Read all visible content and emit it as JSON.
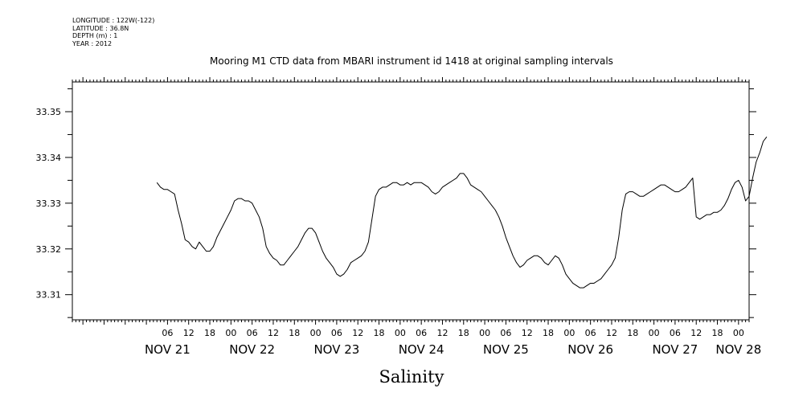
{
  "metadata": [
    "LONGITUDE : 122W(-122)",
    "LATITUDE : 36.8N",
    "DEPTH (m) : 1",
    "YEAR : 2012"
  ],
  "chart_data": {
    "type": "line",
    "title": "Mooring M1 CTD data from MBARI instrument id 1418 at original sampling intervals",
    "xlabel": "Salinity",
    "ylabel": "",
    "x_start": "2012-11-20 03:00",
    "x_end": "2012-11-28 03:00",
    "ylim": [
      33.3045,
      33.3565
    ],
    "y_ticks": [
      33.31,
      33.32,
      33.33,
      33.34,
      33.35
    ],
    "y_tick_labels": [
      "33.31",
      "33.32",
      "33.33",
      "33.34",
      "33.35"
    ],
    "hour_ticks": [
      {
        "t": "2012-11-21 06:00",
        "label": "06"
      },
      {
        "t": "2012-11-21 12:00",
        "label": "12"
      },
      {
        "t": "2012-11-21 18:00",
        "label": "18"
      },
      {
        "t": "2012-11-22 00:00",
        "label": "00"
      },
      {
        "t": "2012-11-22 06:00",
        "label": "06"
      },
      {
        "t": "2012-11-22 12:00",
        "label": "12"
      },
      {
        "t": "2012-11-22 18:00",
        "label": "18"
      },
      {
        "t": "2012-11-23 00:00",
        "label": "00"
      },
      {
        "t": "2012-11-23 06:00",
        "label": "06"
      },
      {
        "t": "2012-11-23 12:00",
        "label": "12"
      },
      {
        "t": "2012-11-23 18:00",
        "label": "18"
      },
      {
        "t": "2012-11-24 00:00",
        "label": "00"
      },
      {
        "t": "2012-11-24 06:00",
        "label": "06"
      },
      {
        "t": "2012-11-24 12:00",
        "label": "12"
      },
      {
        "t": "2012-11-24 18:00",
        "label": "18"
      },
      {
        "t": "2012-11-25 00:00",
        "label": "00"
      },
      {
        "t": "2012-11-25 06:00",
        "label": "06"
      },
      {
        "t": "2012-11-25 12:00",
        "label": "12"
      },
      {
        "t": "2012-11-25 18:00",
        "label": "18"
      },
      {
        "t": "2012-11-26 00:00",
        "label": "00"
      },
      {
        "t": "2012-11-26 06:00",
        "label": "06"
      },
      {
        "t": "2012-11-26 12:00",
        "label": "12"
      },
      {
        "t": "2012-11-26 18:00",
        "label": "18"
      },
      {
        "t": "2012-11-27 00:00",
        "label": "00"
      },
      {
        "t": "2012-11-27 06:00",
        "label": "06"
      },
      {
        "t": "2012-11-27 12:00",
        "label": "12"
      },
      {
        "t": "2012-11-27 18:00",
        "label": "18"
      },
      {
        "t": "2012-11-28 00:00",
        "label": "00"
      }
    ],
    "day_labels": [
      {
        "t": "2012-11-21 06:00",
        "label": "NOV 21"
      },
      {
        "t": "2012-11-22 06:00",
        "label": "NOV 22"
      },
      {
        "t": "2012-11-23 06:00",
        "label": "NOV 23"
      },
      {
        "t": "2012-11-24 06:00",
        "label": "NOV 24"
      },
      {
        "t": "2012-11-25 06:00",
        "label": "NOV 25"
      },
      {
        "t": "2012-11-26 06:00",
        "label": "NOV 26"
      },
      {
        "t": "2012-11-27 06:00",
        "label": "NOV 27"
      },
      {
        "t": "2012-11-28 00:00",
        "label": "NOV 28"
      }
    ],
    "series": [
      {
        "values": [
          [
            "2012-11-21 03:00",
            33.3345
          ],
          [
            "2012-11-21 04:00",
            33.3335
          ],
          [
            "2012-11-21 05:00",
            33.333
          ],
          [
            "2012-11-21 06:00",
            33.333
          ],
          [
            "2012-11-21 07:00",
            33.3325
          ],
          [
            "2012-11-21 08:00",
            33.332
          ],
          [
            "2012-11-21 09:00",
            33.3285
          ],
          [
            "2012-11-21 10:00",
            33.3255
          ],
          [
            "2012-11-21 11:00",
            33.322
          ],
          [
            "2012-11-21 12:00",
            33.3215
          ],
          [
            "2012-11-21 13:00",
            33.3205
          ],
          [
            "2012-11-21 14:00",
            33.32
          ],
          [
            "2012-11-21 15:00",
            33.3215
          ],
          [
            "2012-11-21 16:00",
            33.3205
          ],
          [
            "2012-11-21 17:00",
            33.3195
          ],
          [
            "2012-11-21 18:00",
            33.3195
          ],
          [
            "2012-11-21 19:00",
            33.3205
          ],
          [
            "2012-11-21 20:00",
            33.3225
          ],
          [
            "2012-11-21 21:00",
            33.324
          ],
          [
            "2012-11-21 22:00",
            33.3255
          ],
          [
            "2012-11-21 23:00",
            33.327
          ],
          [
            "2012-11-22 00:00",
            33.3285
          ],
          [
            "2012-11-22 01:00",
            33.3305
          ],
          [
            "2012-11-22 02:00",
            33.331
          ],
          [
            "2012-11-22 03:00",
            33.331
          ],
          [
            "2012-11-22 04:00",
            33.3305
          ],
          [
            "2012-11-22 05:00",
            33.3305
          ],
          [
            "2012-11-22 06:00",
            33.33
          ],
          [
            "2012-11-22 07:00",
            33.3285
          ],
          [
            "2012-11-22 08:00",
            33.327
          ],
          [
            "2012-11-22 09:00",
            33.3245
          ],
          [
            "2012-11-22 10:00",
            33.3205
          ],
          [
            "2012-11-22 11:00",
            33.319
          ],
          [
            "2012-11-22 12:00",
            33.318
          ],
          [
            "2012-11-22 13:00",
            33.3175
          ],
          [
            "2012-11-22 14:00",
            33.3165
          ],
          [
            "2012-11-22 15:00",
            33.3165
          ],
          [
            "2012-11-22 16:00",
            33.3175
          ],
          [
            "2012-11-22 17:00",
            33.3185
          ],
          [
            "2012-11-22 18:00",
            33.3195
          ],
          [
            "2012-11-22 19:00",
            33.3205
          ],
          [
            "2012-11-22 20:00",
            33.322
          ],
          [
            "2012-11-22 21:00",
            33.3235
          ],
          [
            "2012-11-22 22:00",
            33.3245
          ],
          [
            "2012-11-22 23:00",
            33.3245
          ],
          [
            "2012-11-23 00:00",
            33.3235
          ],
          [
            "2012-11-23 01:00",
            33.3215
          ],
          [
            "2012-11-23 02:00",
            33.3195
          ],
          [
            "2012-11-23 03:00",
            33.318
          ],
          [
            "2012-11-23 04:00",
            33.317
          ],
          [
            "2012-11-23 05:00",
            33.316
          ],
          [
            "2012-11-23 06:00",
            33.3145
          ],
          [
            "2012-11-23 07:00",
            33.314
          ],
          [
            "2012-11-23 08:00",
            33.3145
          ],
          [
            "2012-11-23 09:00",
            33.3155
          ],
          [
            "2012-11-23 10:00",
            33.317
          ],
          [
            "2012-11-23 11:00",
            33.3175
          ],
          [
            "2012-11-23 12:00",
            33.318
          ],
          [
            "2012-11-23 13:00",
            33.3185
          ],
          [
            "2012-11-23 14:00",
            33.3195
          ],
          [
            "2012-11-23 15:00",
            33.3215
          ],
          [
            "2012-11-23 16:00",
            33.3265
          ],
          [
            "2012-11-23 17:00",
            33.3315
          ],
          [
            "2012-11-23 18:00",
            33.333
          ],
          [
            "2012-11-23 19:00",
            33.3335
          ],
          [
            "2012-11-23 20:00",
            33.3335
          ],
          [
            "2012-11-23 21:00",
            33.334
          ],
          [
            "2012-11-23 22:00",
            33.3345
          ],
          [
            "2012-11-23 23:00",
            33.3345
          ],
          [
            "2012-11-24 00:00",
            33.334
          ],
          [
            "2012-11-24 01:00",
            33.334
          ],
          [
            "2012-11-24 02:00",
            33.3345
          ],
          [
            "2012-11-24 03:00",
            33.334
          ],
          [
            "2012-11-24 04:00",
            33.3345
          ],
          [
            "2012-11-24 05:00",
            33.3345
          ],
          [
            "2012-11-24 06:00",
            33.3345
          ],
          [
            "2012-11-24 07:00",
            33.334
          ],
          [
            "2012-11-24 08:00",
            33.3335
          ],
          [
            "2012-11-24 09:00",
            33.3325
          ],
          [
            "2012-11-24 10:00",
            33.332
          ],
          [
            "2012-11-24 11:00",
            33.3325
          ],
          [
            "2012-11-24 12:00",
            33.3335
          ],
          [
            "2012-11-24 13:00",
            33.334
          ],
          [
            "2012-11-24 14:00",
            33.3345
          ],
          [
            "2012-11-24 15:00",
            33.335
          ],
          [
            "2012-11-24 16:00",
            33.3355
          ],
          [
            "2012-11-24 17:00",
            33.3365
          ],
          [
            "2012-11-24 18:00",
            33.3365
          ],
          [
            "2012-11-24 19:00",
            33.3355
          ],
          [
            "2012-11-24 20:00",
            33.334
          ],
          [
            "2012-11-24 21:00",
            33.3335
          ],
          [
            "2012-11-24 22:00",
            33.333
          ],
          [
            "2012-11-24 23:00",
            33.3325
          ],
          [
            "2012-11-25 00:00",
            33.3315
          ],
          [
            "2012-11-25 01:00",
            33.3305
          ],
          [
            "2012-11-25 02:00",
            33.3295
          ],
          [
            "2012-11-25 03:00",
            33.3285
          ],
          [
            "2012-11-25 04:00",
            33.327
          ],
          [
            "2012-11-25 05:00",
            33.325
          ],
          [
            "2012-11-25 06:00",
            33.3225
          ],
          [
            "2012-11-25 07:00",
            33.3205
          ],
          [
            "2012-11-25 08:00",
            33.3185
          ],
          [
            "2012-11-25 09:00",
            33.317
          ],
          [
            "2012-11-25 10:00",
            33.316
          ],
          [
            "2012-11-25 11:00",
            33.3165
          ],
          [
            "2012-11-25 12:00",
            33.3175
          ],
          [
            "2012-11-25 13:00",
            33.318
          ],
          [
            "2012-11-25 14:00",
            33.3185
          ],
          [
            "2012-11-25 15:00",
            33.3185
          ],
          [
            "2012-11-25 16:00",
            33.318
          ],
          [
            "2012-11-25 17:00",
            33.317
          ],
          [
            "2012-11-25 18:00",
            33.3165
          ],
          [
            "2012-11-25 19:00",
            33.3175
          ],
          [
            "2012-11-25 20:00",
            33.3185
          ],
          [
            "2012-11-25 21:00",
            33.318
          ],
          [
            "2012-11-25 22:00",
            33.3165
          ],
          [
            "2012-11-25 23:00",
            33.3145
          ],
          [
            "2012-11-26 00:00",
            33.3135
          ],
          [
            "2012-11-26 01:00",
            33.3125
          ],
          [
            "2012-11-26 02:00",
            33.312
          ],
          [
            "2012-11-26 03:00",
            33.3115
          ],
          [
            "2012-11-26 04:00",
            33.3115
          ],
          [
            "2012-11-26 05:00",
            33.312
          ],
          [
            "2012-11-26 06:00",
            33.3125
          ],
          [
            "2012-11-26 07:00",
            33.3125
          ],
          [
            "2012-11-26 08:00",
            33.313
          ],
          [
            "2012-11-26 09:00",
            33.3135
          ],
          [
            "2012-11-26 10:00",
            33.3145
          ],
          [
            "2012-11-26 11:00",
            33.3155
          ],
          [
            "2012-11-26 12:00",
            33.3165
          ],
          [
            "2012-11-26 13:00",
            33.318
          ],
          [
            "2012-11-26 14:00",
            33.3225
          ],
          [
            "2012-11-26 15:00",
            33.3285
          ],
          [
            "2012-11-26 16:00",
            33.332
          ],
          [
            "2012-11-26 17:00",
            33.3325
          ],
          [
            "2012-11-26 18:00",
            33.3325
          ],
          [
            "2012-11-26 19:00",
            33.332
          ],
          [
            "2012-11-26 20:00",
            33.3315
          ],
          [
            "2012-11-26 21:00",
            33.3315
          ],
          [
            "2012-11-26 22:00",
            33.332
          ],
          [
            "2012-11-26 23:00",
            33.3325
          ],
          [
            "2012-11-27 00:00",
            33.333
          ],
          [
            "2012-11-27 01:00",
            33.3335
          ],
          [
            "2012-11-27 02:00",
            33.334
          ],
          [
            "2012-11-27 03:00",
            33.334
          ],
          [
            "2012-11-27 04:00",
            33.3335
          ],
          [
            "2012-11-27 05:00",
            33.333
          ],
          [
            "2012-11-27 06:00",
            33.3325
          ],
          [
            "2012-11-27 07:00",
            33.3325
          ],
          [
            "2012-11-27 08:00",
            33.333
          ],
          [
            "2012-11-27 09:00",
            33.3335
          ],
          [
            "2012-11-27 10:00",
            33.3345
          ],
          [
            "2012-11-27 11:00",
            33.3355
          ],
          [
            "2012-11-27 12:00",
            33.327
          ],
          [
            "2012-11-27 13:00",
            33.3265
          ],
          [
            "2012-11-27 14:00",
            33.327
          ],
          [
            "2012-11-27 15:00",
            33.3275
          ],
          [
            "2012-11-27 16:00",
            33.3275
          ],
          [
            "2012-11-27 17:00",
            33.328
          ],
          [
            "2012-11-27 18:00",
            33.328
          ],
          [
            "2012-11-27 19:00",
            33.3285
          ],
          [
            "2012-11-27 20:00",
            33.3295
          ],
          [
            "2012-11-27 21:00",
            33.331
          ],
          [
            "2012-11-27 22:00",
            33.333
          ],
          [
            "2012-11-27 23:00",
            33.3345
          ],
          [
            "2012-11-28 00:00",
            33.335
          ],
          [
            "2012-11-28 01:00",
            33.3335
          ],
          [
            "2012-11-28 02:00",
            33.3305
          ],
          [
            "2012-11-28 03:00",
            33.3315
          ],
          [
            "2012-11-28 04:00",
            33.3355
          ],
          [
            "2012-11-28 05:00",
            33.339
          ],
          [
            "2012-11-28 06:00",
            33.341
          ],
          [
            "2012-11-28 07:00",
            33.3435
          ],
          [
            "2012-11-28 08:00",
            33.3445
          ]
        ]
      }
    ]
  }
}
